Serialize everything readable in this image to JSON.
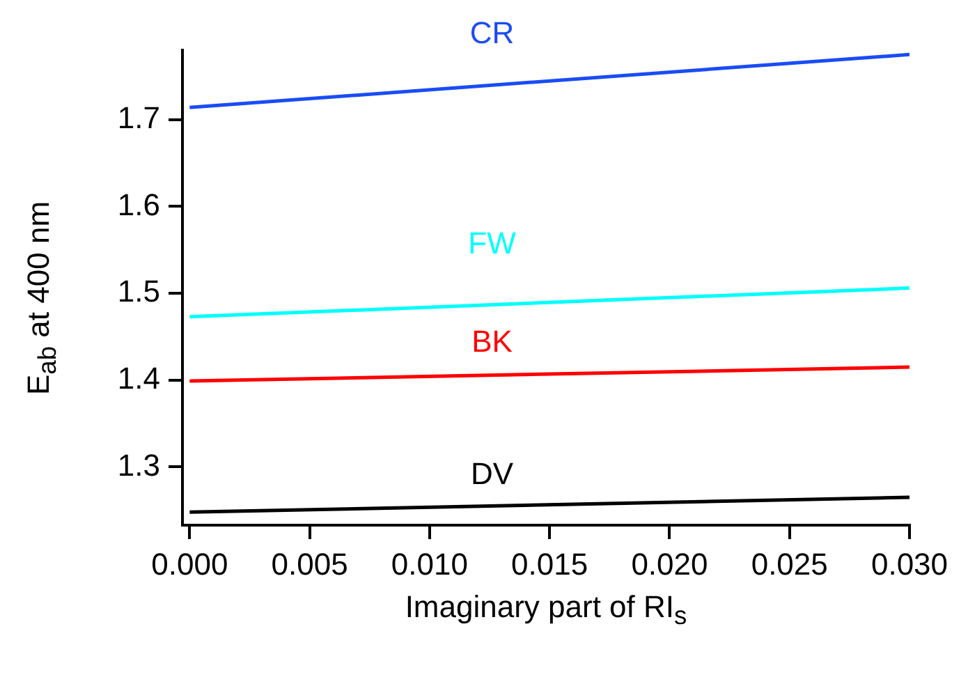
{
  "chart_data": {
    "type": "line",
    "xlabel": "Imaginary part of RI$_{s}$",
    "ylabel": "E$_{ab}$ at 400 nm",
    "x": [
      0,
      0.03
    ],
    "series": [
      {
        "name": "CR",
        "color": "#1a4cf5",
        "values": [
          1.714,
          1.775
        ]
      },
      {
        "name": "FW",
        "color": "#00ffff",
        "values": [
          1.473,
          1.506
        ]
      },
      {
        "name": "BK",
        "color": "#ff0000",
        "values": [
          1.399,
          1.415
        ]
      },
      {
        "name": "DV",
        "color": "#000000",
        "values": [
          1.248,
          1.265
        ]
      }
    ],
    "xlim": [
      -0.0003,
      0.03
    ],
    "xticks": [
      {
        "value": 0,
        "label": "0.000"
      },
      {
        "value": 0.005,
        "label": "0.005"
      },
      {
        "value": 0.01,
        "label": "0.010"
      },
      {
        "value": 0.015,
        "label": "0.015"
      },
      {
        "value": 0.02,
        "label": "0.020"
      },
      {
        "value": 0.025,
        "label": "0.025"
      },
      {
        "value": 0.03,
        "label": "0.030"
      }
    ],
    "ylim": [
      1.233,
      1.78
    ],
    "yticks": [
      1.3,
      1.4,
      1.5,
      1.6,
      1.7
    ],
    "marker": "none",
    "line_style": "solid"
  }
}
